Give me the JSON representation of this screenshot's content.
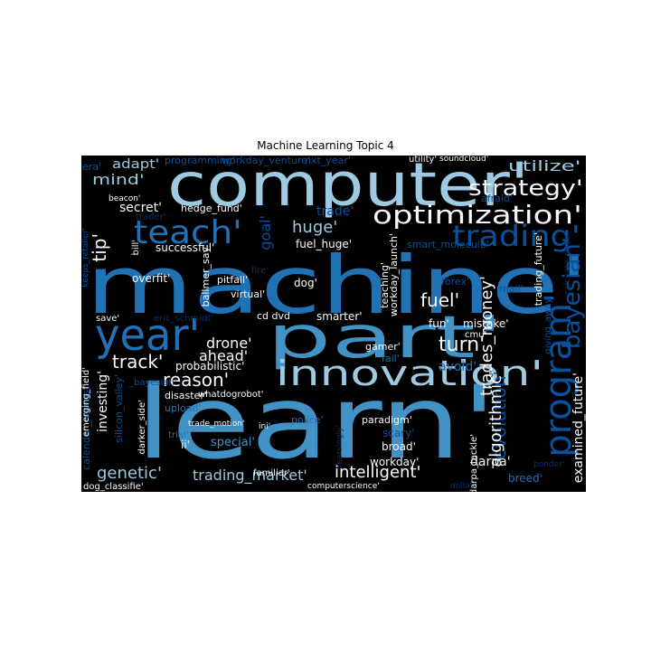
{
  "figure": {
    "title": "Machine Learning Topic 4"
  },
  "palette": {
    "background": "#000000",
    "pale": "#9ecae1",
    "mid": "#4292c6",
    "strong": "#2171b5",
    "dark": "#08519c",
    "deep": "#08306b",
    "white": "#f7fbff"
  },
  "words": [
    {
      "text": "machine'",
      "color": "#2171b5"
    },
    {
      "text": "learn'",
      "color": "#4292c6"
    },
    {
      "text": "computer'",
      "color": "#9ecae1"
    },
    {
      "text": "part'",
      "color": "#4292c6"
    },
    {
      "text": "year'",
      "color": "#2171b5"
    },
    {
      "text": "innovation'",
      "color": "#9ecae1"
    },
    {
      "text": "optimization'",
      "color": "#f7fbff"
    },
    {
      "text": "program'",
      "color": "#08519c"
    },
    {
      "text": "teach'",
      "color": "#2171b5"
    },
    {
      "text": "trading'",
      "color": "#08519c"
    },
    {
      "text": "strategy'",
      "color": "#f7fbff"
    },
    {
      "text": "utilize'",
      "color": "#9ecae1"
    },
    {
      "text": "mind'",
      "color": "#9ecae1"
    },
    {
      "text": "adapt'",
      "color": "#9ecae1"
    },
    {
      "text": "era'",
      "color": "#08519c"
    },
    {
      "text": "programming'",
      "color": "#08519c"
    },
    {
      "text": "workday_venture'",
      "color": "#08519c"
    },
    {
      "text": "nxt_year'",
      "color": "#08519c"
    },
    {
      "text": "utility'",
      "color": "#f7fbff"
    },
    {
      "text": "soundcloud'",
      "color": "#f7fbff"
    },
    {
      "text": "beacon'",
      "color": "#f7fbff"
    },
    {
      "text": "secret'",
      "color": "#f7fbff"
    },
    {
      "text": "hedge_fund'",
      "color": "#f7fbff"
    },
    {
      "text": "trader'",
      "color": "#08306b"
    },
    {
      "text": "afraid'",
      "color": "#08519c"
    },
    {
      "text": "tip'",
      "color": "#f7fbff"
    },
    {
      "text": "huge'",
      "color": "#9ecae1"
    },
    {
      "text": "trade'",
      "color": "#08519c"
    },
    {
      "text": "goal'",
      "color": "#08519c"
    },
    {
      "text": "fuel_huge'",
      "color": "#f7fbff"
    },
    {
      "text": "smart_molecule'",
      "color": "#08519c"
    },
    {
      "text": "bayesian'",
      "color": "#08519c"
    },
    {
      "text": "calcuate_rmse'",
      "color": "#08306b"
    },
    {
      "text": "keeps_retailer'",
      "color": "#08519c"
    },
    {
      "text": "bill'",
      "color": "#f7fbff"
    },
    {
      "text": "successful'",
      "color": "#f7fbff"
    },
    {
      "text": "ballmer_say'",
      "color": "#f7fbff"
    },
    {
      "text": "fire'",
      "color": "#08306b"
    },
    {
      "text": "pitfall'",
      "color": "#f7fbff"
    },
    {
      "text": "overfit'",
      "color": "#f7fbff"
    },
    {
      "text": "virtual'",
      "color": "#f7fbff"
    },
    {
      "text": "dog'",
      "color": "#f7fbff"
    },
    {
      "text": "teaching'",
      "color": "#f7fbff"
    },
    {
      "text": "workday_launch'",
      "color": "#f7fbff"
    },
    {
      "text": "forex'",
      "color": "#08519c"
    },
    {
      "text": "mail'",
      "color": "#08519c"
    },
    {
      "text": "trading_future'",
      "color": "#f7fbff"
    },
    {
      "text": "giving_away'",
      "color": "#08519c"
    },
    {
      "text": "trades_money'",
      "color": "#f7fbff"
    },
    {
      "text": "fuel'",
      "color": "#f7fbff"
    },
    {
      "text": "save'",
      "color": "#f7fbff"
    },
    {
      "text": "eric_schmidt'",
      "color": "#08306b"
    },
    {
      "text": "cd dvd ",
      "color": "#f7fbff"
    },
    {
      "text": "smarter'",
      "color": "#f7fbff"
    },
    {
      "text": "fun'",
      "color": "#f7fbff"
    },
    {
      "text": "mistake'",
      "color": "#f7fbff"
    },
    {
      "text": "cmu'",
      "color": "#f7fbff"
    },
    {
      "text": "turn'",
      "color": "#f7fbff"
    },
    {
      "text": "drone'",
      "color": "#f7fbff"
    },
    {
      "text": "gamer'",
      "color": "#f7fbff"
    },
    {
      "text": "track'",
      "color": "#f7fbff"
    },
    {
      "text": "ahead'",
      "color": "#f7fbff"
    },
    {
      "text": "probabilistic'",
      "color": "#f7fbff"
    },
    {
      "text": "fail'",
      "color": "#2171b5"
    },
    {
      "text": "avoid'",
      "color": "#2171b5"
    },
    {
      "text": "evolution'",
      "color": "#08519c"
    },
    {
      "text": "reason'",
      "color": "#f7fbff"
    },
    {
      "text": "calendar_newest",
      "color": "#08519c"
    },
    {
      "text": "emerging_field'",
      "color": "#f7fbff"
    },
    {
      "text": "investing'",
      "color": "#f7fbff"
    },
    {
      "text": "silicon_valley'",
      "color": "#08519c"
    },
    {
      "text": " _bayesian'",
      "color": "#08519c"
    },
    {
      "text": "disaster'",
      "color": "#f7fbff"
    },
    {
      "text": "whatdogrobot'",
      "color": "#f7fbff"
    },
    {
      "text": "upload'",
      "color": "#2171b5"
    },
    {
      "text": "police'",
      "color": "#2171b5"
    },
    {
      "text": "paradigm'",
      "color": "#f7fbff"
    },
    {
      "text": "fearsingly'",
      "color": "#08306b"
    },
    {
      "text": "scary'",
      "color": "#08519c"
    },
    {
      "text": "darker_side'",
      "color": "#f7fbff"
    },
    {
      "text": "trial'",
      "color": "#2171b5"
    },
    {
      "text": "trade_motion'",
      "color": "#f7fbff"
    },
    {
      "text": "ini'",
      "color": "#f7fbff"
    },
    {
      "text": "ii'",
      "color": "#f7fbff"
    },
    {
      "text": "special'",
      "color": "#4292c6"
    },
    {
      "text": "broad'",
      "color": "#f7fbff"
    },
    {
      "text": "workday'",
      "color": "#f7fbff"
    },
    {
      "text": "darpa_tackle'",
      "color": "#f7fbff"
    },
    {
      "text": "algorithmic'",
      "color": "#f7fbff"
    },
    {
      "text": "darpa'",
      "color": "#f7fbff"
    },
    {
      "text": "examined_future'",
      "color": "#f7fbff"
    },
    {
      "text": "ponder'",
      "color": "#08306b"
    },
    {
      "text": "breed'",
      "color": "#2171b5"
    },
    {
      "text": "genetic'",
      "color": "#9ecae1"
    },
    {
      "text": "trading_market'",
      "color": "#9ecae1"
    },
    {
      "text": "intelligent'",
      "color": "#f7fbff"
    },
    {
      "text": "familiar'",
      "color": "#f7fbff"
    },
    {
      "text": "dog_classifie'",
      "color": "#f7fbff"
    },
    {
      "text": "computerscience'",
      "color": "#f7fbff"
    },
    {
      "text": "dollar'",
      "color": "#08306b"
    }
  ]
}
